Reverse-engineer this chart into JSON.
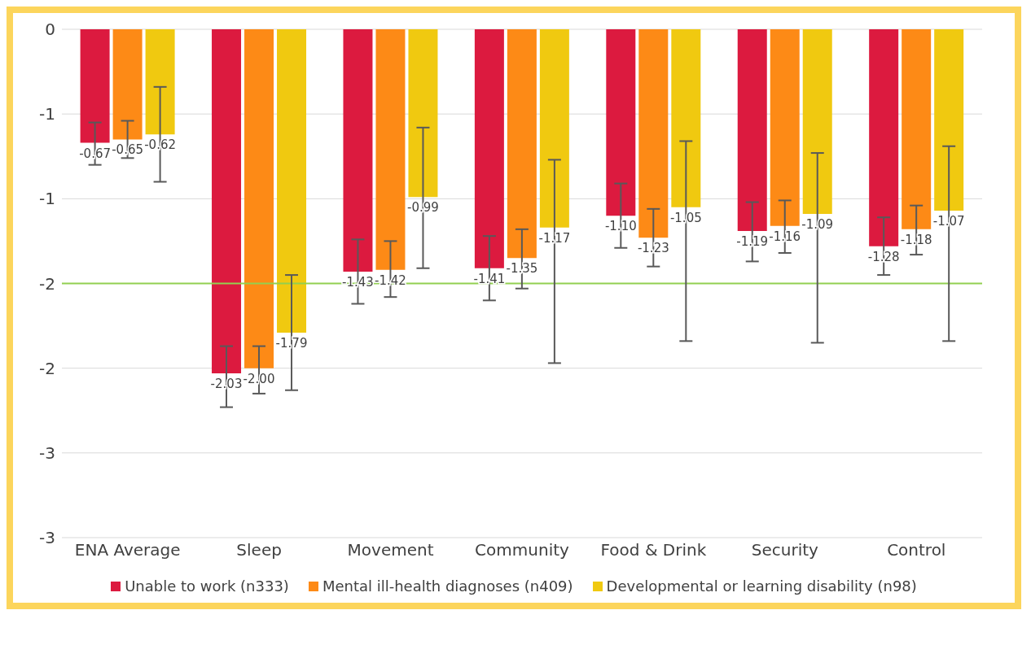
{
  "chart_data": {
    "type": "bar",
    "categories": [
      "ENA Average",
      "Sleep",
      "Movement",
      "Community",
      "Food & Drink",
      "Security",
      "Control"
    ],
    "series": [
      {
        "name": "Unable to work (n333)",
        "color": "#dc1a3f",
        "values": [
          -0.67,
          -2.03,
          -1.43,
          -1.41,
          -1.1,
          -1.19,
          -1.28
        ],
        "value_labels": [
          "-0.67",
          "-2.03",
          "-1.43",
          "-1.41",
          "-1.10",
          "-1.19",
          "-1.28"
        ],
        "errors": [
          [
            -0.8,
            -0.55
          ],
          [
            -2.23,
            -1.87
          ],
          [
            -1.62,
            -1.24
          ],
          [
            -1.6,
            -1.22
          ],
          [
            -1.29,
            -0.91
          ],
          [
            -1.37,
            -1.02
          ],
          [
            -1.45,
            -1.11
          ]
        ]
      },
      {
        "name": "Mental ill-health diagnoses (n409)",
        "color": "#fd8a16",
        "values": [
          -0.65,
          -2.0,
          -1.42,
          -1.35,
          -1.23,
          -1.16,
          -1.18
        ],
        "value_labels": [
          "-0.65",
          "-2.00",
          "-1.42",
          "-1.35",
          "-1.23",
          "-1.16",
          "-1.18"
        ],
        "errors": [
          [
            -0.76,
            -0.54
          ],
          [
            -2.15,
            -1.87
          ],
          [
            -1.58,
            -1.25
          ],
          [
            -1.53,
            -1.18
          ],
          [
            -1.4,
            -1.06
          ],
          [
            -1.32,
            -1.01
          ],
          [
            -1.33,
            -1.04
          ]
        ]
      },
      {
        "name": "Developmental or learning disability (n98)",
        "color": "#f0c910",
        "values": [
          -0.62,
          -1.79,
          -0.99,
          -1.17,
          -1.05,
          -1.09,
          -1.07
        ],
        "value_labels": [
          "-0.62",
          "-1.79",
          "-0.99",
          "-1.17",
          "-1.05",
          "-1.09",
          "-1.07"
        ],
        "errors": [
          [
            -0.9,
            -0.34
          ],
          [
            -2.13,
            -1.45
          ],
          [
            -1.41,
            -0.58
          ],
          [
            -1.97,
            -0.77
          ],
          [
            -1.84,
            -0.66
          ],
          [
            -1.85,
            -0.73
          ],
          [
            -1.84,
            -0.69
          ]
        ]
      }
    ],
    "ylim": [
      -3,
      0
    ],
    "yticks": [
      0,
      {
        "value": -0.5,
        "label": "-1"
      },
      -1,
      {
        "value": -1.5,
        "label": "-2"
      },
      -2,
      {
        "value": -2.5,
        "label": "-3"
      },
      -3
    ],
    "ref_lines": [
      {
        "axis": "y",
        "value": -1.5,
        "color": "#92d050"
      }
    ],
    "grid": "y",
    "legend": "bottom"
  }
}
